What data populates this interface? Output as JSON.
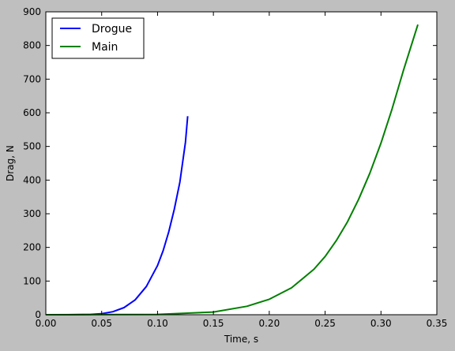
{
  "chart_data": {
    "type": "line",
    "title": "",
    "xlabel": "Time, s",
    "ylabel": "Drag, N",
    "xlim": [
      0.0,
      0.35
    ],
    "ylim": [
      0,
      900
    ],
    "x_ticks": [
      0.0,
      0.05,
      0.1,
      0.15,
      0.2,
      0.25,
      0.3,
      0.35
    ],
    "x_tick_labels": [
      "0.00",
      "0.05",
      "0.10",
      "0.15",
      "0.20",
      "0.25",
      "0.30",
      "0.35"
    ],
    "y_ticks": [
      0,
      100,
      200,
      300,
      400,
      500,
      600,
      700,
      800,
      900
    ],
    "y_tick_labels": [
      "0",
      "100",
      "200",
      "300",
      "400",
      "500",
      "600",
      "700",
      "800",
      "900"
    ],
    "grid": false,
    "legend_position": "top-left",
    "series": [
      {
        "name": "Drogue",
        "color": "#0000ff",
        "x": [
          0.0,
          0.02,
          0.04,
          0.05,
          0.06,
          0.07,
          0.08,
          0.09,
          0.1,
          0.105,
          0.11,
          0.115,
          0.12,
          0.125,
          0.127
        ],
        "y": [
          0,
          0,
          1,
          3,
          9,
          21,
          44,
          84,
          146,
          190,
          246,
          313,
          394,
          513,
          590
        ]
      },
      {
        "name": "Main",
        "color": "#008000",
        "x": [
          0.0,
          0.1,
          0.15,
          0.18,
          0.2,
          0.22,
          0.24,
          0.25,
          0.26,
          0.27,
          0.28,
          0.29,
          0.3,
          0.31,
          0.32,
          0.333
        ],
        "y": [
          0,
          1,
          8,
          25,
          46,
          80,
          135,
          173,
          220,
          276,
          343,
          420,
          510,
          612,
          725,
          862
        ]
      }
    ]
  }
}
